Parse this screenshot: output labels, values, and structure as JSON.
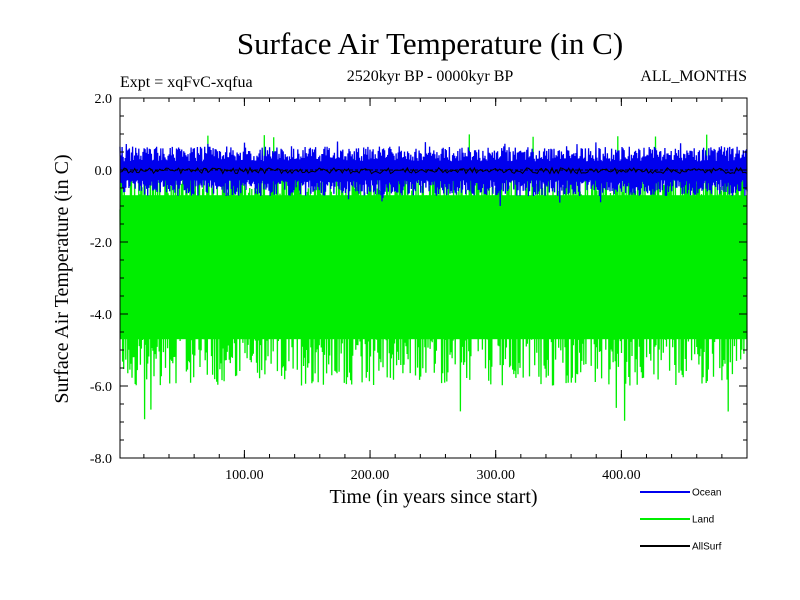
{
  "chart_data": {
    "type": "line",
    "title": "Surface Air Temperature (in C)",
    "subtitle": "2520kyr BP - 0000kyr BP",
    "experiment": "Expt = xqFvC-xqfua",
    "months": "ALL_MONTHS",
    "xlabel": "Time (in years since start)",
    "ylabel": "Surface Air Temperature (in C)",
    "xlim": [
      1,
      500
    ],
    "ylim": [
      -8.0,
      2.0
    ],
    "x_ticks": [
      100,
      200,
      300,
      400
    ],
    "x_tick_labels": [
      "100.00",
      "200.00",
      "300.00",
      "400.00"
    ],
    "y_ticks": [
      2.0,
      0.0,
      -2.0,
      -4.0,
      -6.0,
      -8.0
    ],
    "y_tick_labels": [
      "2.0",
      "0.0",
      "-2.0",
      "-4.0",
      "-6.0",
      "-8.0"
    ],
    "zero_line": 0.0,
    "series": [
      {
        "name": "Land",
        "color": "#00ee00",
        "mean": -2.8,
        "min": -7.0,
        "max": 1.0,
        "typical_high": -0.7,
        "typical_low": -5.0
      },
      {
        "name": "Ocean",
        "color": "#0000ee",
        "mean": 0.0,
        "min": -1.0,
        "max": 0.8,
        "typical_high": 0.45,
        "typical_low": -0.5
      },
      {
        "name": "AllSurf",
        "color": "#000000",
        "mean": -0.02,
        "min": -0.1,
        "max": 0.06
      }
    ],
    "legend": [
      {
        "label": "Ocean",
        "color": "#0000ee"
      },
      {
        "label": "Land",
        "color": "#00ee00"
      },
      {
        "label": "AllSurf",
        "color": "#000000"
      }
    ]
  }
}
